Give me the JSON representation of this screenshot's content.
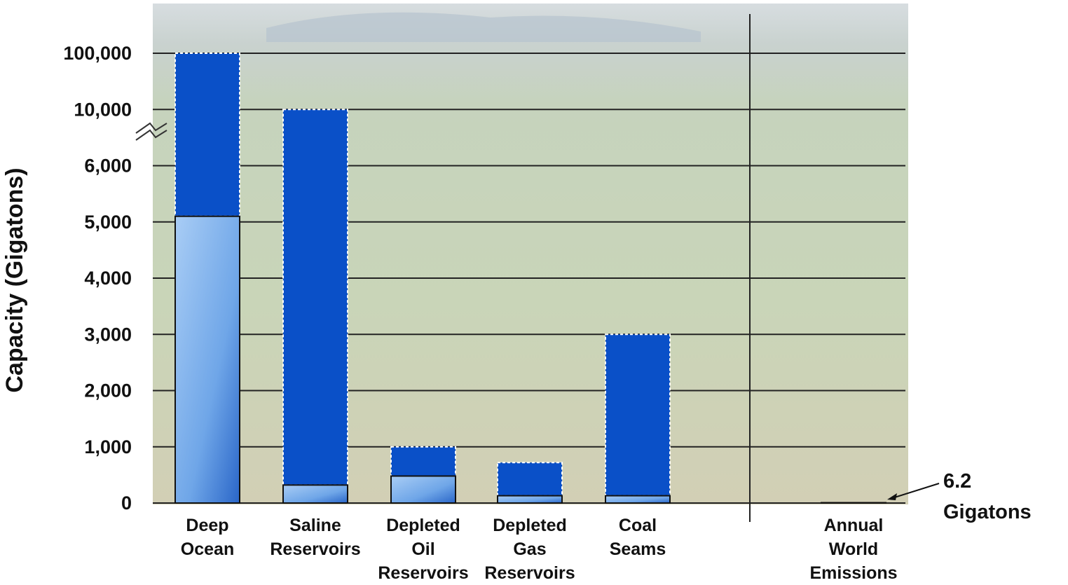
{
  "chart_data": {
    "type": "range_bar",
    "y_label": "Capacity (Gigatons)",
    "categories": [
      "Deep Ocean",
      "Saline Reservoirs",
      "Depleted Oil Reservoirs",
      "Depleted Gas Reservoirs",
      "Coal Seams",
      "Annual World Emissions"
    ],
    "series": [
      {
        "color": "#6fa6e8",
        "values": [
          5100,
          320,
          480,
          130,
          130,
          6.2
        ],
        "value_labels": [
          null,
          null,
          null,
          null,
          null,
          "6.2 Gigatons"
        ]
      },
      {
        "color": "#0a50c8",
        "values": [
          100000,
          10000,
          1000,
          720,
          3000,
          null
        ]
      }
    ],
    "ylim": [
      0,
      100000
    ],
    "yticks": [
      0,
      {
        "value": 1000,
        "label": "1,000"
      },
      {
        "value": 2000,
        "label": "2,000"
      },
      {
        "value": 3000,
        "label": "3,000"
      },
      {
        "value": 4000,
        "label": "4,000"
      },
      {
        "value": 5000,
        "label": "5,000"
      },
      {
        "value": 6000,
        "label": "6,000"
      },
      {
        "value": 10000,
        "label": "10,000"
      },
      {
        "value": 100000,
        "label": "100,000"
      }
    ],
    "grid": true
  }
}
